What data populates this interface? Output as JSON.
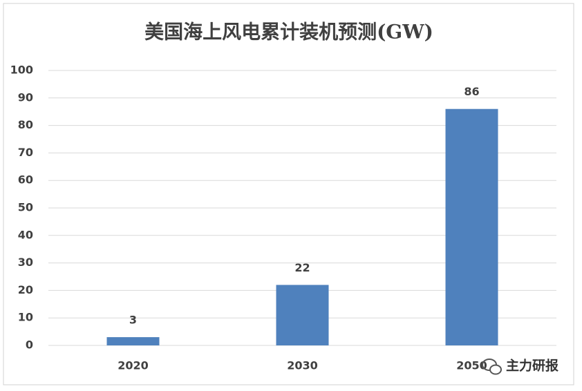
{
  "chart_data": {
    "type": "bar",
    "title": "美国海上风电累计装机预测(GW)",
    "categories": [
      "2020",
      "2030",
      "2050"
    ],
    "values": [
      3,
      22,
      86
    ],
    "color": "#4f81bd",
    "ylim": [
      0,
      100
    ],
    "yticks": [
      0,
      10,
      20,
      30,
      40,
      50,
      60,
      70,
      80,
      90,
      100
    ],
    "grid": true,
    "watermark": "主力研报"
  }
}
